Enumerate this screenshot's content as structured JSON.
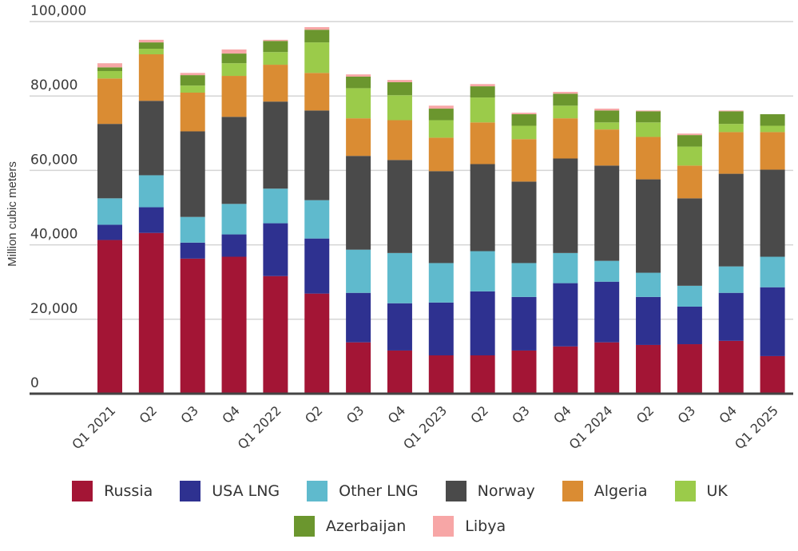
{
  "chart_data": {
    "type": "bar",
    "stacked": true,
    "title": "",
    "xlabel": "",
    "ylabel": "Million cubic meters",
    "ylim": [
      0,
      100000
    ],
    "yticks": [
      0,
      20000,
      40000,
      60000,
      80000,
      100000
    ],
    "ytick_labels": [
      "0",
      "20,000",
      "40,000",
      "60,000",
      "80,000",
      "100,000"
    ],
    "grid": true,
    "legend_position": "bottom",
    "categories": [
      "Q1 2021",
      "Q2",
      "Q3",
      "Q4",
      "Q1 2022",
      "Q2",
      "Q3",
      "Q4",
      "Q1 2023",
      "Q2",
      "Q3",
      "Q4",
      "Q1 2024",
      "Q2",
      "Q3",
      "Q4",
      "Q1 2025"
    ],
    "series": [
      {
        "name": "Russia",
        "color": "#A31535",
        "values": [
          41300,
          43200,
          36300,
          36800,
          31600,
          26900,
          13800,
          11600,
          10300,
          10300,
          11600,
          12700,
          13800,
          13100,
          13300,
          14200,
          10100
        ]
      },
      {
        "name": "USA LNG",
        "color": "#2E3190",
        "values": [
          4100,
          6900,
          4300,
          6000,
          14200,
          14800,
          13300,
          12700,
          14200,
          17200,
          14400,
          17000,
          16300,
          12900,
          10100,
          12900,
          18500
        ]
      },
      {
        "name": "Other LNG",
        "color": "#5FBACD",
        "values": [
          7100,
          8600,
          6900,
          8200,
          9300,
          10300,
          11600,
          13500,
          10600,
          10800,
          9100,
          8100,
          5600,
          6500,
          5600,
          7100,
          8200
        ]
      },
      {
        "name": "Norway",
        "color": "#4A4A4A",
        "values": [
          20000,
          20000,
          23000,
          23400,
          23400,
          24100,
          25200,
          25000,
          24700,
          23400,
          21900,
          25400,
          25600,
          25100,
          23500,
          24900,
          23400
        ]
      },
      {
        "name": "Algeria",
        "color": "#DA8C33",
        "values": [
          12200,
          12500,
          10400,
          11000,
          9900,
          10100,
          10100,
          10700,
          9000,
          11200,
          11400,
          10800,
          9700,
          11400,
          8800,
          11200,
          10100
        ]
      },
      {
        "name": "UK",
        "color": "#9BCB4A",
        "values": [
          2000,
          1500,
          1900,
          3400,
          3400,
          8200,
          8100,
          6700,
          4700,
          6700,
          3600,
          3400,
          1900,
          3900,
          5100,
          2200,
          1700
        ]
      },
      {
        "name": "Azerbaijan",
        "color": "#6B962E",
        "values": [
          1000,
          1700,
          2800,
          2600,
          3000,
          3400,
          3100,
          3500,
          3100,
          3000,
          3100,
          3200,
          3200,
          3000,
          3100,
          3400,
          3100
        ]
      },
      {
        "name": "Libya",
        "color": "#F7A6A6",
        "values": [
          1100,
          700,
          600,
          1100,
          300,
          700,
          600,
          600,
          800,
          600,
          400,
          500,
          500,
          200,
          400,
          200,
          0
        ]
      }
    ]
  }
}
